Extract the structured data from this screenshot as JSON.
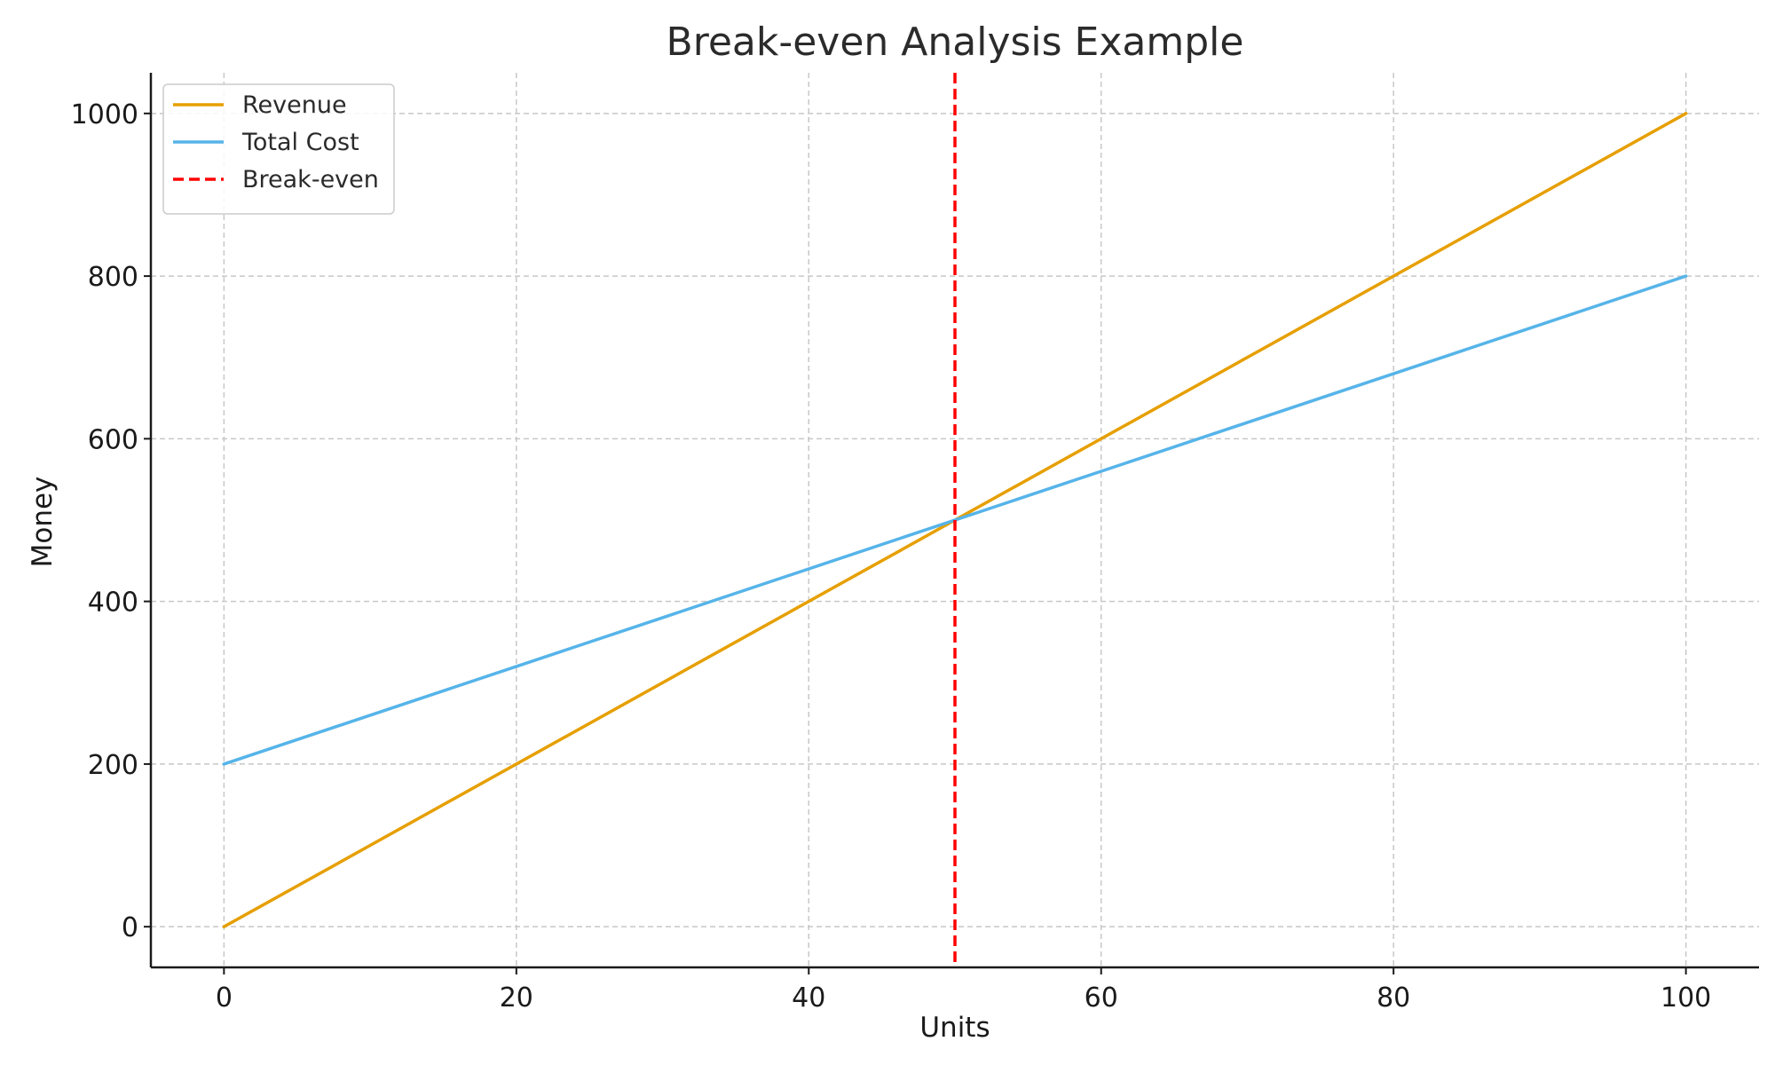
{
  "chart_data": {
    "type": "line",
    "title": "Break-even Analysis Example",
    "xlabel": "Units",
    "ylabel": "Money",
    "xlim": [
      -5,
      105
    ],
    "ylim": [
      -50,
      1050
    ],
    "x_ticks": [
      0,
      20,
      40,
      60,
      80,
      100
    ],
    "y_ticks": [
      0,
      200,
      400,
      600,
      800,
      1000
    ],
    "grid": true,
    "legend_position": "top-left",
    "series": [
      {
        "name": "Revenue",
        "color": "#e69f00",
        "style": "solid",
        "x": [
          0,
          100
        ],
        "y": [
          0,
          1000
        ]
      },
      {
        "name": "Total Cost",
        "color": "#56b4e9",
        "style": "solid",
        "x": [
          0,
          100
        ],
        "y": [
          200,
          800
        ]
      }
    ],
    "vlines": [
      {
        "name": "Break-even",
        "color": "#ff0000",
        "style": "dashed",
        "x": 50
      }
    ]
  }
}
